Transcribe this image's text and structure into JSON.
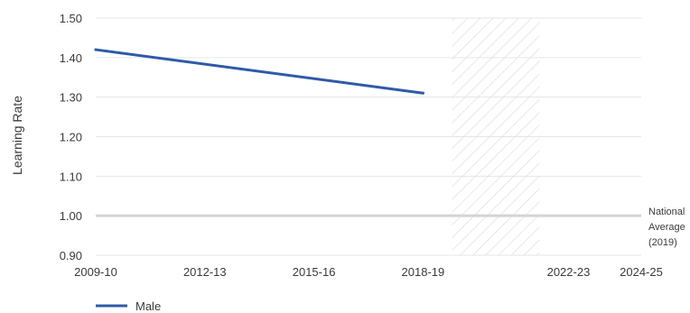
{
  "chart_data": {
    "type": "line",
    "ylabel": "Learning Rate",
    "ylim": [
      0.9,
      1.5
    ],
    "y_ticks": [
      "0.90",
      "1.00",
      "1.10",
      "1.20",
      "1.30",
      "1.40",
      "1.50"
    ],
    "x_ticks": [
      "2009-10",
      "2012-13",
      "2015-16",
      "2018-19",
      "2022-23",
      "2024-25"
    ],
    "grid": "horizontal",
    "series": [
      {
        "name": "Male",
        "color": "#2f5aa8",
        "points": [
          {
            "x": "2009-10",
            "y": 1.42
          },
          {
            "x": "2018-19",
            "y": 1.31
          }
        ]
      }
    ],
    "reference_line": {
      "value": 1.0,
      "label_lines": [
        "National",
        "Average",
        "(2019)"
      ],
      "color": "#d4d4d4"
    },
    "shaded_period": {
      "from": "2019-20",
      "to": "2021-22",
      "pattern": "diagonal-hatch"
    },
    "legend": {
      "placement": "bottom-left"
    }
  }
}
